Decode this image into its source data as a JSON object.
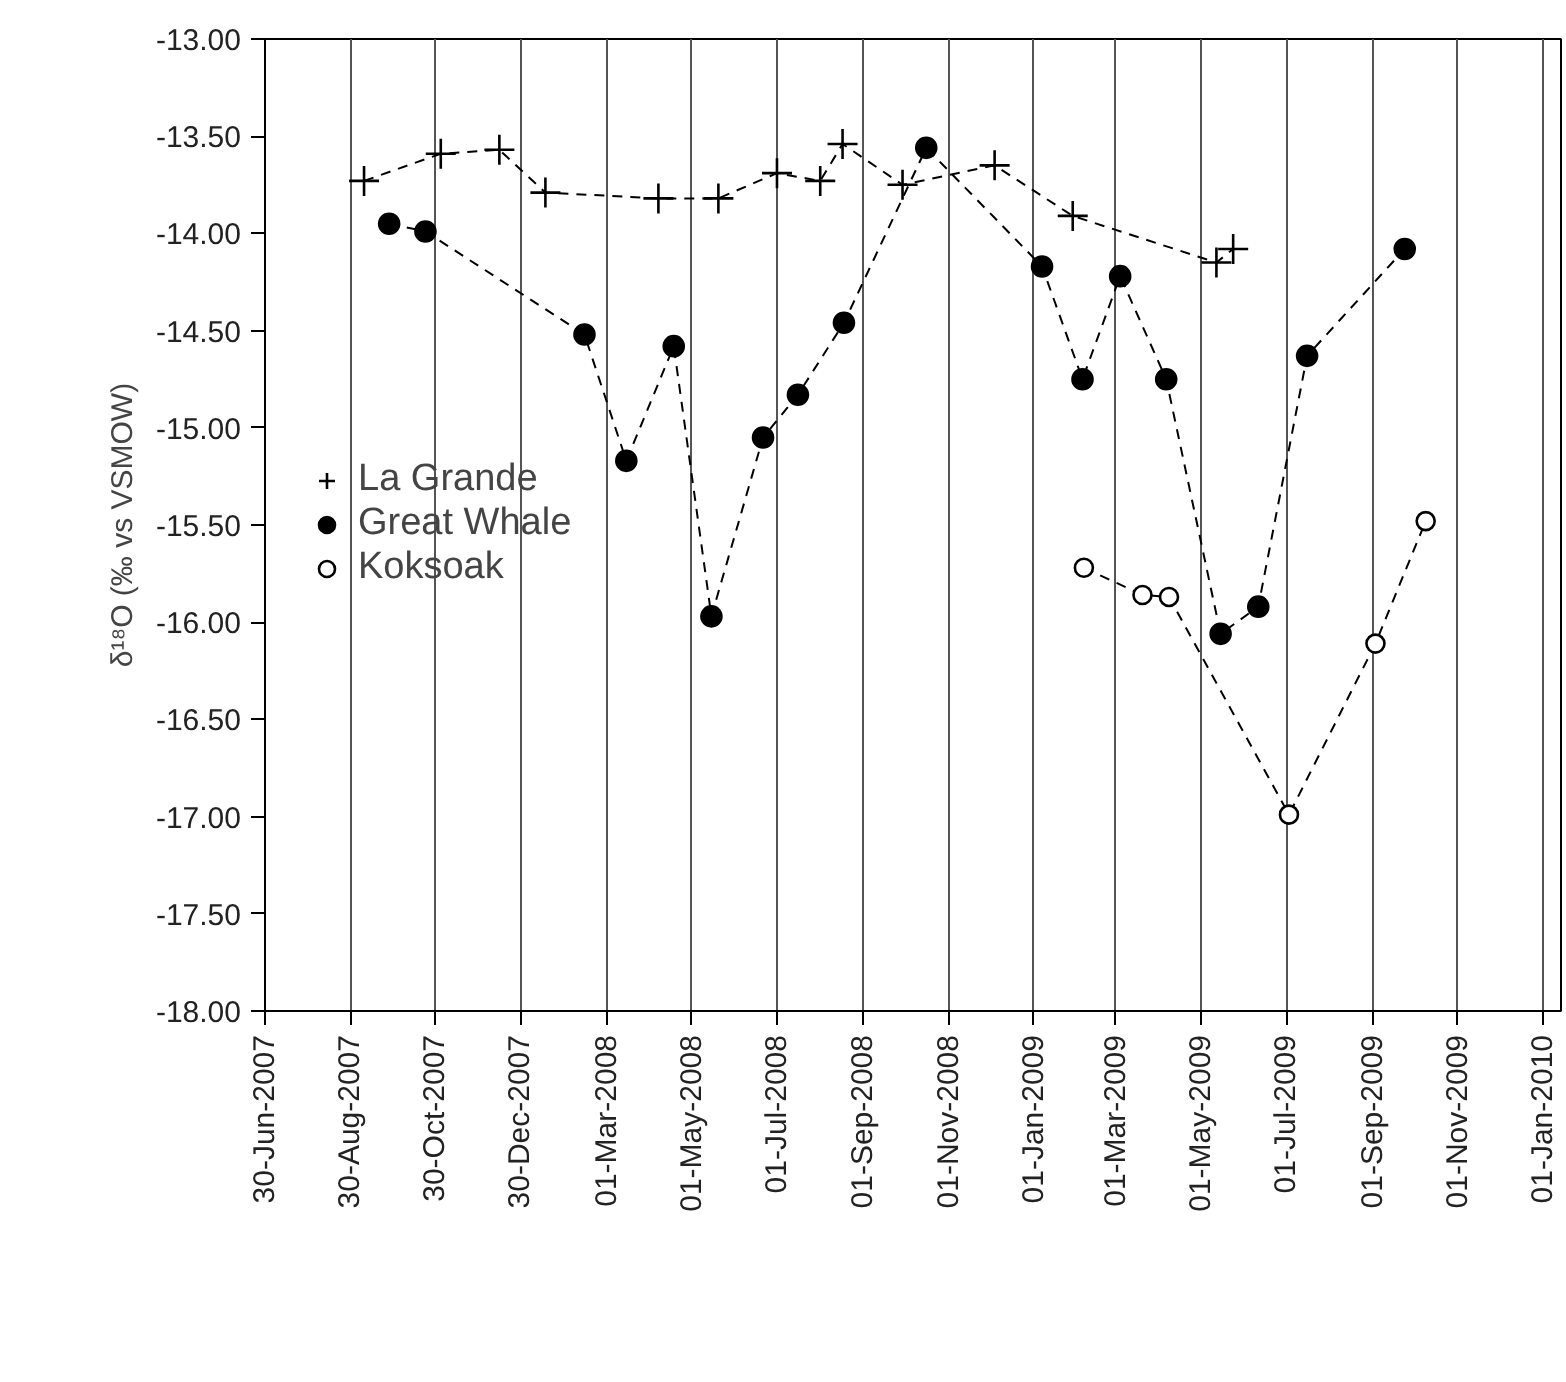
{
  "chart_data": {
    "type": "line",
    "ylabel": "δ¹⁸O (‰ vs VSMOW)",
    "xlim": [
      "2007-06-30",
      "2010-01-14"
    ],
    "xticks": [
      {
        "value": "2007-06-30",
        "label": "30-Jun-2007"
      },
      {
        "value": "2007-08-30",
        "label": "30-Aug-2007"
      },
      {
        "value": "2007-10-30",
        "label": "30-Oct-2007"
      },
      {
        "value": "2007-12-30",
        "label": "30-Dec-2007"
      },
      {
        "value": "2008-03-01",
        "label": "01-Mar-2008"
      },
      {
        "value": "2008-05-01",
        "label": "01-May-2008"
      },
      {
        "value": "2008-07-01",
        "label": "01-Jul-2008"
      },
      {
        "value": "2008-09-01",
        "label": "01-Sep-2008"
      },
      {
        "value": "2008-11-01",
        "label": "01-Nov-2008"
      },
      {
        "value": "2009-01-01",
        "label": "01-Jan-2009"
      },
      {
        "value": "2009-03-01",
        "label": "01-Mar-2009"
      },
      {
        "value": "2009-05-01",
        "label": "01-May-2009"
      },
      {
        "value": "2009-07-01",
        "label": "01-Jul-2009"
      },
      {
        "value": "2009-09-01",
        "label": "01-Sep-2009"
      },
      {
        "value": "2009-11-01",
        "label": "01-Nov-2009"
      },
      {
        "value": "2010-01-01",
        "label": "01-Jan-2010"
      }
    ],
    "ylim": [
      -18,
      -13
    ],
    "yticks": [
      {
        "value": -13,
        "label": "-13.00"
      },
      {
        "value": -13.5,
        "label": "-13.50"
      },
      {
        "value": -14,
        "label": "-14.00"
      },
      {
        "value": -14.5,
        "label": "-14.50"
      },
      {
        "value": -15,
        "label": "-15.00"
      },
      {
        "value": -15.5,
        "label": "-15.50"
      },
      {
        "value": -16,
        "label": "-16.00"
      },
      {
        "value": -16.5,
        "label": "-16.50"
      },
      {
        "value": -17,
        "label": "-17.00"
      },
      {
        "value": -17.5,
        "label": "-17.50"
      },
      {
        "value": -18,
        "label": "-18.00"
      }
    ],
    "grid": "x",
    "legend": "left",
    "line_style": "dashed",
    "series": [
      {
        "name": "La Grande",
        "color": "#000000",
        "marker": "cross",
        "x": [
          "2007-09-09",
          "2007-11-03",
          "2007-12-15",
          "2008-01-17",
          "2008-04-07",
          "2008-05-20",
          "2008-07-01",
          "2008-08-01",
          "2008-08-17",
          "2008-09-29",
          "2008-12-04",
          "2009-01-29",
          "2009-05-12",
          "2009-05-24"
        ],
        "values": [
          -13.73,
          -13.59,
          -13.57,
          -13.79,
          -13.82,
          -13.82,
          -13.69,
          -13.73,
          -13.54,
          -13.75,
          -13.65,
          -13.91,
          -14.15,
          -14.08
        ]
      },
      {
        "name": "Great Whale",
        "color": "#000000",
        "marker": "circle",
        "x": [
          "2007-09-27",
          "2007-10-23",
          "2008-02-14",
          "2008-03-15",
          "2008-04-18",
          "2008-05-15",
          "2008-06-21",
          "2008-07-16",
          "2008-08-18",
          "2008-10-16",
          "2009-01-07",
          "2009-02-05",
          "2009-03-04",
          "2009-04-06",
          "2009-05-15",
          "2009-06-11",
          "2009-07-16",
          "2009-09-24"
        ],
        "values": [
          -13.95,
          -13.99,
          -14.52,
          -15.17,
          -14.58,
          -15.97,
          -15.05,
          -14.83,
          -14.46,
          -13.56,
          -14.17,
          -14.75,
          -14.22,
          -14.75,
          -16.06,
          -15.92,
          -14.63,
          -14.08
        ]
      },
      {
        "name": "Koksoak",
        "color": "#000000",
        "marker": "circle_open",
        "x": [
          "2009-02-06",
          "2009-03-20",
          "2009-04-08",
          "2009-07-03",
          "2009-09-03",
          "2009-10-09"
        ],
        "values": [
          -15.72,
          -15.86,
          -15.87,
          -16.99,
          -16.11,
          -15.48
        ]
      }
    ]
  }
}
